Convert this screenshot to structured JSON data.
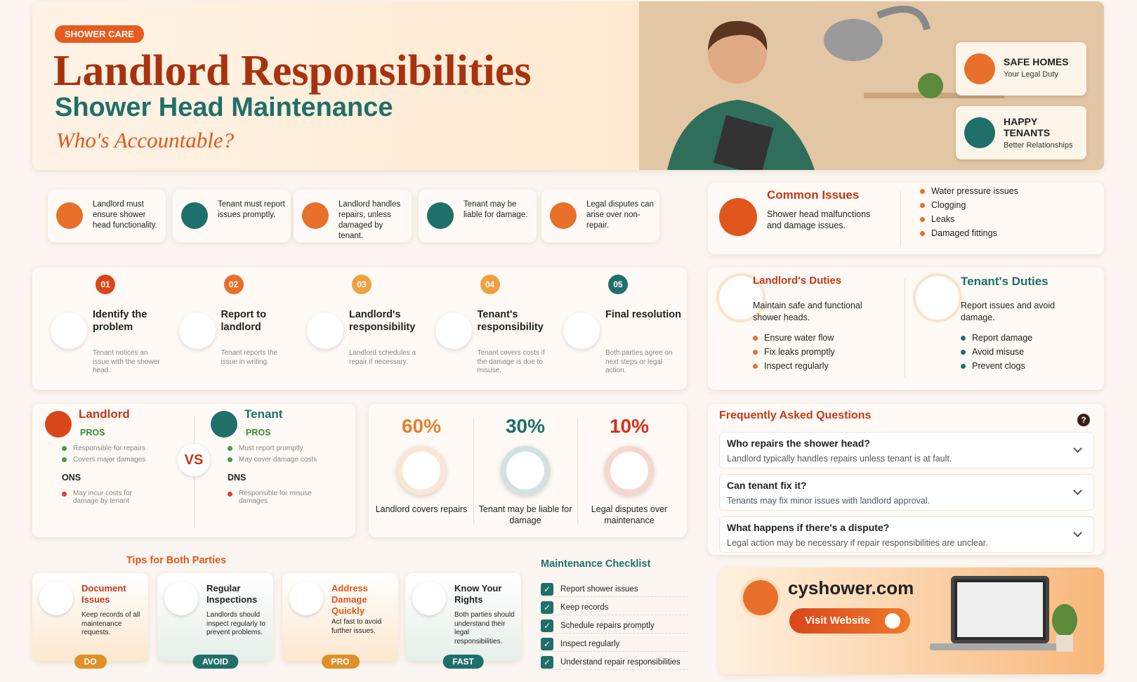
{
  "header": {
    "badge": "SHOWER CARE",
    "title": "Landlord Responsibilities",
    "subtitle": "Shower Head Maintenance",
    "tagline": "Who's Accountable?",
    "badges": [
      {
        "title": "SAFE HOMES",
        "text": "Your Legal Duty"
      },
      {
        "title": "HAPPY TENANTS",
        "text": "Better Relationships"
      }
    ]
  },
  "facts": [
    "Landlord must ensure shower head functionality.",
    "Tenant must report issues promptly.",
    "Landlord handles repairs, unless damaged by tenant.",
    "Tenant may be liable for damage.",
    "Legal disputes can arise over non-repair."
  ],
  "common_issues": {
    "title": "Common Issues",
    "text": "Shower head malfunctions and damage issues.",
    "items": [
      "Water pressure issues",
      "Clogging",
      "Leaks",
      "Damaged fittings"
    ]
  },
  "steps": [
    {
      "number": "01",
      "title": "Identify the problem",
      "text": "Tenant notices an issue with the shower head."
    },
    {
      "number": "02",
      "title": "Report to landlord",
      "text": "Tenant reports the issue in writing."
    },
    {
      "number": "03",
      "title": "Landlord's responsibility",
      "text": "Landlord schedules a repair if necessary."
    },
    {
      "number": "04",
      "title": "Tenant's responsibility",
      "text": "Tenant covers costs if the damage is due to misuse."
    },
    {
      "number": "05",
      "title": "Final resolution",
      "text": "Both parties agree on next steps or legal action."
    }
  ],
  "duties": [
    {
      "title": "Landlord's Duties",
      "text": "Maintain safe and functional shower heads.",
      "items": [
        "Ensure water flow",
        "Fix leaks promptly",
        "Inspect regularly"
      ]
    },
    {
      "title": "Tenant's Duties",
      "text": "Report issues and avoid damage.",
      "items": [
        "Report damage",
        "Avoid misuse",
        "Prevent clogs"
      ]
    }
  ],
  "comparison": {
    "vs": "VS",
    "sides": [
      {
        "name": "Landlord",
        "pros_label": "PROS",
        "pros": [
          "Responsible for repairs",
          "Covers major damages"
        ],
        "cons_label": "ONS",
        "cons": [
          "May incur costs for damage by tenant"
        ]
      },
      {
        "name": "Tenant",
        "pros_label": "PROS",
        "pros": [
          "Must report promptly",
          "May cover damage costs"
        ],
        "cons_label": "DNS",
        "cons": [
          "Responsible for misuse damages"
        ]
      }
    ]
  },
  "stats": [
    {
      "value": "60%",
      "label": "Landlord covers repairs"
    },
    {
      "value": "30%",
      "label": "Tenant may be liable for damage"
    },
    {
      "value": "10%",
      "label": "Legal disputes over maintenance"
    }
  ],
  "faq": {
    "title": "Frequently Asked Questions",
    "icon": "?",
    "items": [
      {
        "q": "Who repairs the shower head?",
        "a": "Landlord typically handles repairs unless tenant is at fault."
      },
      {
        "q": "Can tenant fix it?",
        "a": "Tenants may fix minor issues with landlord approval."
      },
      {
        "q": "What happens if there's a dispute?",
        "a": "Legal action may be necessary if repair responsibilities are unclear."
      }
    ]
  },
  "tips": {
    "title": "Tips for Both Parties",
    "items": [
      {
        "title": "Document Issues",
        "text": "Keep records of all maintenance requests.",
        "tag": "DO"
      },
      {
        "title": "Regular Inspections",
        "text": "Landlords should inspect regularly to prevent problems.",
        "tag": "AVOID"
      },
      {
        "title": "Address Damage Quickly",
        "text": "Act fast to avoid further issues.",
        "tag": "PRO"
      },
      {
        "title": "Know Your Rights",
        "text": "Both parties should understand their legal responsibilities.",
        "tag": "FAST"
      }
    ]
  },
  "checklist": {
    "title": "Maintenance Checklist",
    "items": [
      "Report shower issues",
      "Keep records",
      "Schedule repairs promptly",
      "Inspect regularly",
      "Understand repair responsibilities"
    ]
  },
  "website": {
    "url": "cyshower.com",
    "button": "Visit Website"
  }
}
